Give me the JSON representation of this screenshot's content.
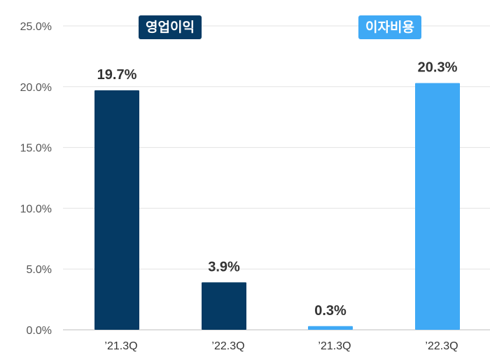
{
  "chart_data": {
    "type": "bar",
    "categories": [
      "’21.3Q",
      "’22.3Q",
      "’21.3Q",
      "’22.3Q"
    ],
    "values": [
      19.7,
      3.9,
      0.3,
      20.3
    ],
    "value_labels": [
      "19.7%",
      "3.9%",
      "0.3%",
      "20.3%"
    ],
    "groups": [
      {
        "name": "영업이익",
        "color": "#053a64",
        "indices": [
          0,
          1
        ]
      },
      {
        "name": "이자비용",
        "color": "#3fa9f5",
        "indices": [
          2,
          3
        ]
      }
    ],
    "ylim": [
      0,
      25
    ],
    "yticks": [
      0,
      5,
      10,
      15,
      20,
      25
    ],
    "ytick_labels": [
      "0.0%",
      "5.0%",
      "10.0%",
      "15.0%",
      "20.0%",
      "25.0%"
    ],
    "grid": true,
    "title": "",
    "xlabel": "",
    "ylabel": ""
  }
}
